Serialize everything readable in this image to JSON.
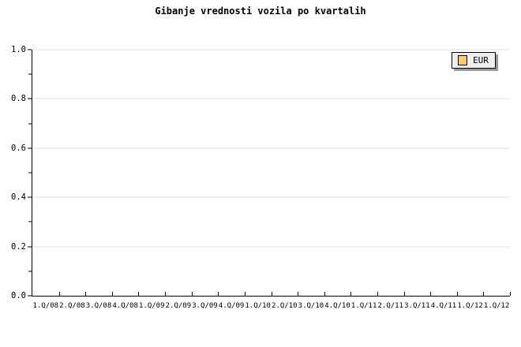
{
  "title": "Gibanje vrednosti vozila po kvartalih",
  "legend": {
    "label": "EUR",
    "swatch_color": "#ffcc66",
    "position": "top-right"
  },
  "colors": {
    "background": "#ffffff",
    "axis": "#000000",
    "gridline": "#e0e0e0",
    "text": "#000000",
    "legend_background": "#efefef",
    "legend_border": "#000000",
    "legend_shadow": "#999999"
  },
  "chart_data": {
    "type": "bar",
    "title": "Gibanje vrednosti vozila po kvartalih",
    "xlabel": "",
    "ylabel": "",
    "categories": [
      "1.Q/08",
      "2.Q/08",
      "3.Q/08",
      "4.Q/08",
      "1.Q/09",
      "2.Q/09",
      "3.Q/09",
      "4.Q/09",
      "1.Q/10",
      "2.Q/10",
      "3.Q/10",
      "4.Q/10",
      "1.Q/11",
      "2.Q/11",
      "3.Q/11",
      "4.Q/11",
      "1.Q/12",
      "1.Q/12"
    ],
    "series": [
      {
        "name": "EUR",
        "color": "#ffcc66",
        "values": []
      }
    ],
    "plot_empty": true,
    "ylim": [
      0.0,
      1.0
    ],
    "y_major_ticks": [
      0.0,
      0.2,
      0.4,
      0.6,
      0.8,
      1.0
    ],
    "y_major_tick_labels": [
      "0.0",
      "0.2",
      "0.4",
      "0.6",
      "0.8",
      "1.0"
    ],
    "y_minor_tick_step": 0.1,
    "grid": "horizontal major gridlines only",
    "legend_position": "top-right"
  }
}
